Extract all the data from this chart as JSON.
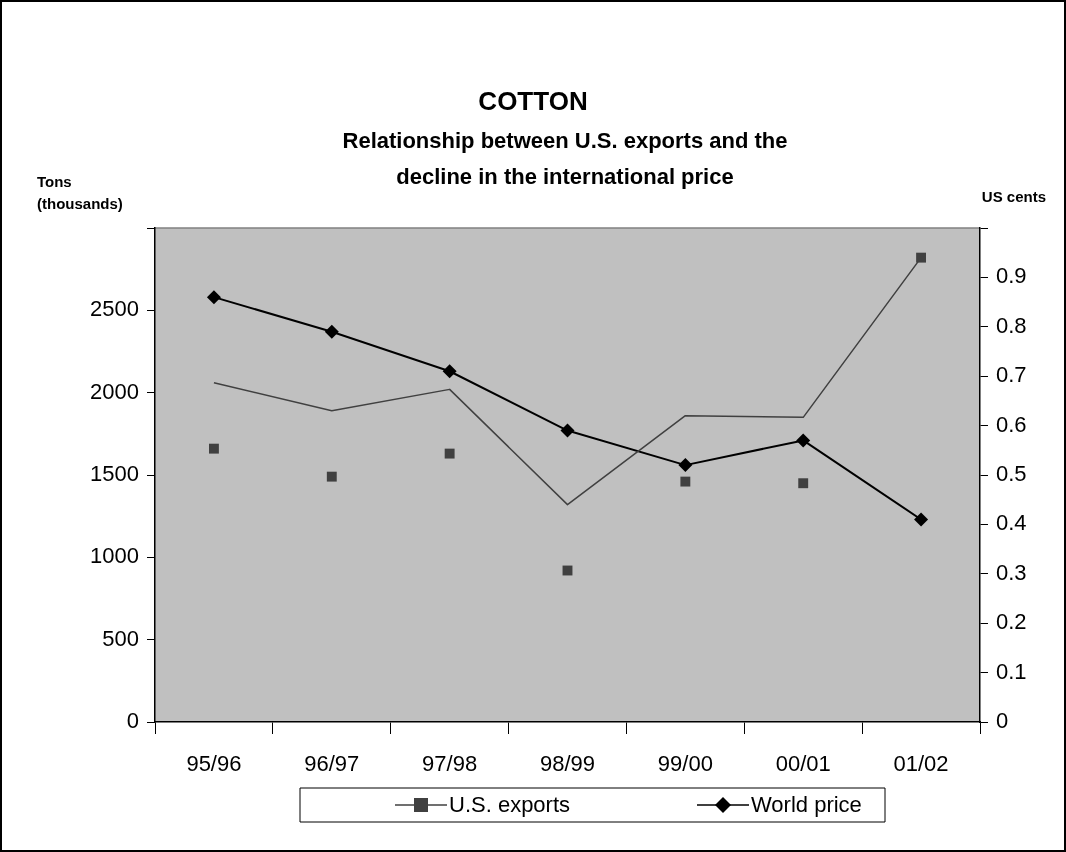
{
  "chart_data": {
    "type": "line",
    "title": "COTTON",
    "subtitle": "Relationship between U.S. exports and the decline in the international price",
    "ylabel": "Tons (thousands)",
    "y2label": "US cents",
    "categories": [
      "95/96",
      "96/97",
      "97/98",
      "98/99",
      "99/00",
      "00/01",
      "01/02"
    ],
    "ylim": [
      0,
      3000
    ],
    "yticks": [
      0,
      500,
      1000,
      1500,
      2000,
      2500,
      {
        "value": 3000,
        "label": null
      }
    ],
    "y2lim": [
      0,
      1
    ],
    "y2ticks": [
      0,
      0.1,
      0.2,
      0.3,
      0.4,
      0.5,
      0.6,
      0.7,
      0.8,
      0.9,
      {
        "value": 1,
        "label": null
      }
    ],
    "legend": "bottom",
    "series": [
      {
        "name": "U.S. exports",
        "type": "scatter",
        "marker": "square",
        "color": "#404040",
        "values": [
          1660,
          1490,
          1630,
          920,
          1460,
          1450,
          2820
        ]
      },
      {
        "marker": "none",
        "color": "#404040",
        "values": [
          2060,
          1890,
          2020,
          1320,
          1860,
          1850,
          2820
        ]
      },
      {
        "name": "World price",
        "marker": "diamond",
        "color": "#000000",
        "axis": "y2",
        "values": [
          0.86,
          0.79,
          0.71,
          0.59,
          0.52,
          0.57,
          0.41
        ]
      }
    ]
  }
}
